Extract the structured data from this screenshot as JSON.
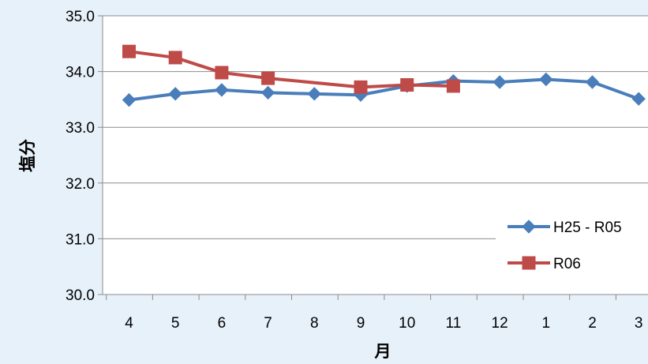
{
  "chart_data": {
    "type": "line",
    "title": "",
    "xlabel": "月",
    "ylabel": "塩分",
    "ylim": [
      30.0,
      35.0
    ],
    "y_ticks": [
      "30.0",
      "31.0",
      "32.0",
      "33.0",
      "34.0",
      "35.0"
    ],
    "categories": [
      "4",
      "5",
      "6",
      "7",
      "8",
      "9",
      "10",
      "11",
      "12",
      "1",
      "2",
      "3"
    ],
    "grid": true,
    "legend_position": "right",
    "series": [
      {
        "name": "H25 - R05",
        "color": "#4a7ebb",
        "marker": "diamond",
        "values": [
          33.49,
          33.6,
          33.67,
          33.62,
          33.6,
          33.58,
          33.74,
          33.83,
          33.81,
          33.86,
          33.81,
          33.51
        ]
      },
      {
        "name": "R06",
        "color": "#be4b48",
        "marker": "square",
        "values": [
          34.36,
          34.25,
          33.98,
          33.88,
          null,
          33.72,
          33.76,
          33.74,
          null,
          null,
          null,
          null
        ]
      }
    ]
  }
}
